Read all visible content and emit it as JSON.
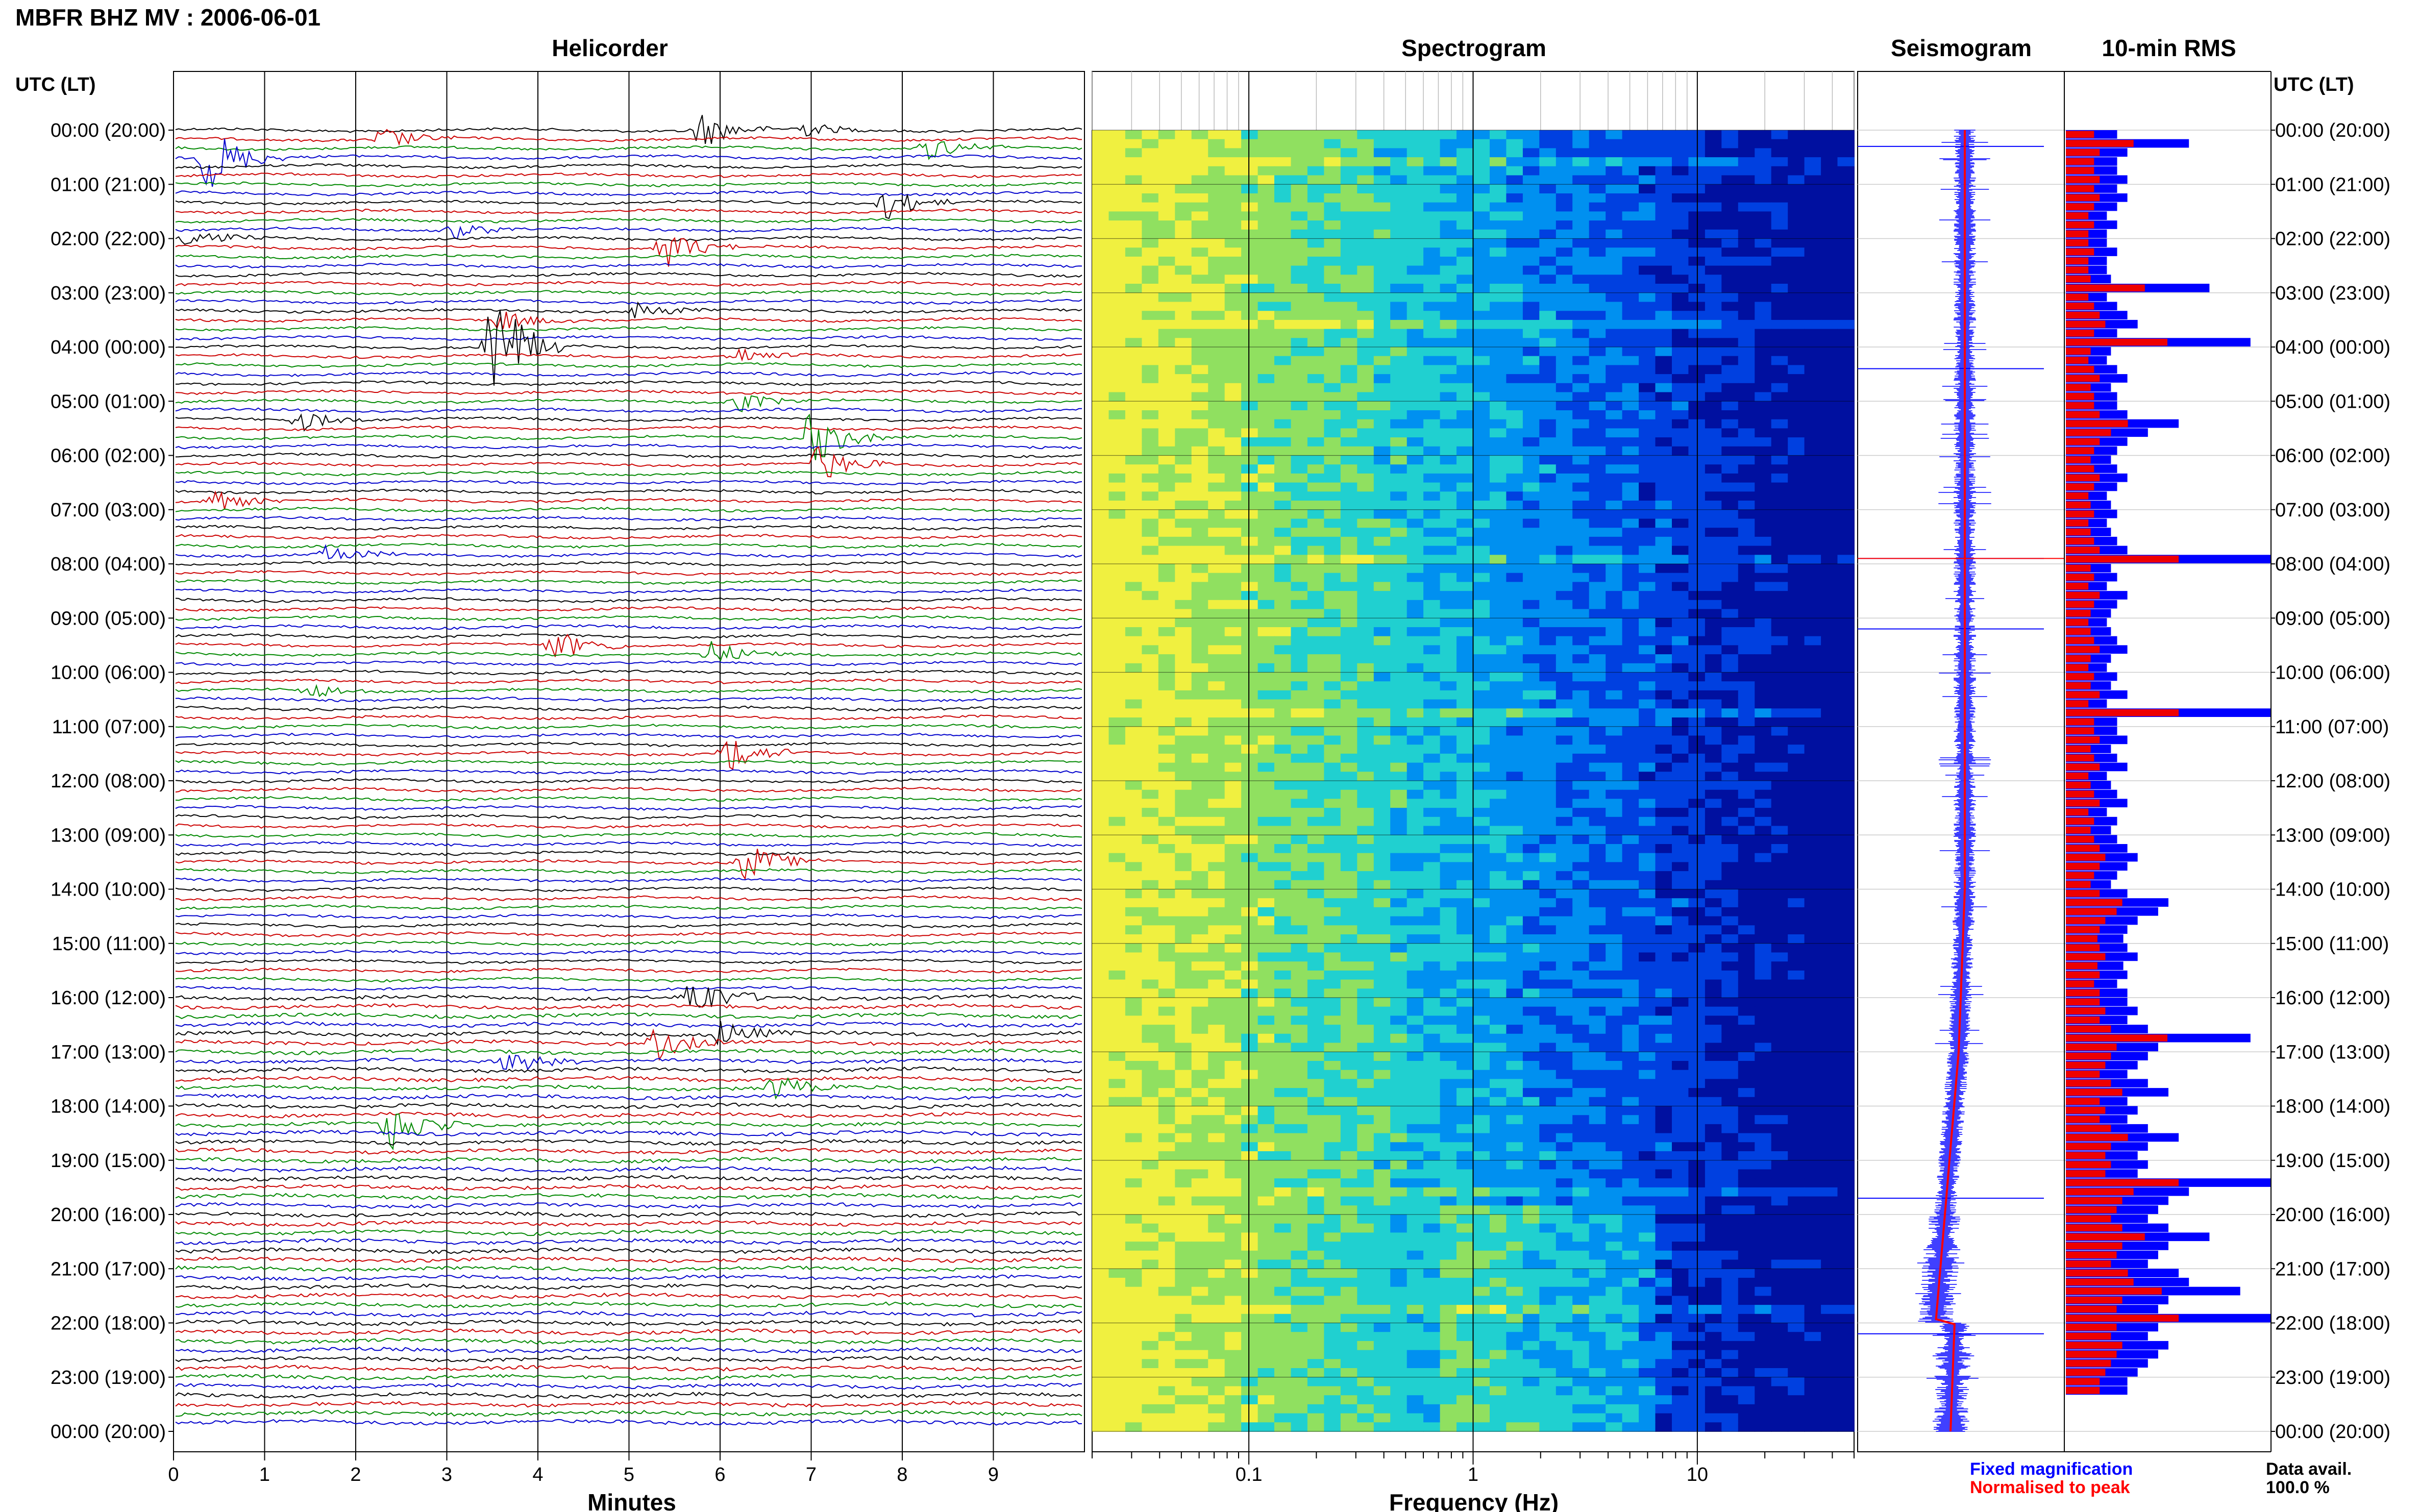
{
  "page_title": "MBFR BHZ MV : 2006-06-01",
  "panels": {
    "helicorder": "Helicorder",
    "spectrogram": "Spectrogram",
    "seismogram": "Seismogram",
    "rms": "10-min RMS"
  },
  "axis_header_left": "UTC (LT)",
  "axis_header_right": "UTC (LT)",
  "time_labels": [
    "00:00 (20:00)",
    "01:00 (21:00)",
    "02:00 (22:00)",
    "03:00 (23:00)",
    "04:00 (00:00)",
    "05:00 (01:00)",
    "06:00 (02:00)",
    "07:00 (03:00)",
    "08:00 (04:00)",
    "09:00 (05:00)",
    "10:00 (06:00)",
    "11:00 (07:00)",
    "12:00 (08:00)",
    "13:00 (09:00)",
    "14:00 (10:00)",
    "15:00 (11:00)",
    "16:00 (12:00)",
    "17:00 (13:00)",
    "18:00 (14:00)",
    "19:00 (15:00)",
    "20:00 (16:00)",
    "21:00 (17:00)",
    "22:00 (18:00)",
    "23:00 (19:00)",
    "00:00 (20:00)"
  ],
  "legend": {
    "fixed": "Fixed magnification",
    "normalised": "Normalised to peak",
    "data_avail_label": "Data avail.",
    "data_avail_value": "100.0 %"
  },
  "colors": {
    "trace_cycle": [
      "#000000",
      "#cc0000",
      "#008800",
      "#0000cc"
    ],
    "fixed": "#0000ff",
    "normalised": "#ff0000"
  },
  "chart_data": [
    {
      "type": "line",
      "name": "Helicorder",
      "title": "Helicorder",
      "xlabel": "Minutes",
      "ylabel": "UTC (LT)",
      "xlim": [
        0,
        10
      ],
      "x_ticks": [
        0,
        1,
        2,
        3,
        4,
        5,
        6,
        7,
        8,
        9
      ],
      "traces_per_hour": 6,
      "minutes_per_trace": 10,
      "events": [
        {
          "row": 0,
          "minute": 5.8,
          "amp": 0.9
        },
        {
          "row": 0,
          "minute": 6.9,
          "amp": 0.4
        },
        {
          "row": 1,
          "minute": 2.3,
          "amp": 0.6
        },
        {
          "row": 2,
          "minute": 8.3,
          "amp": 0.6
        },
        {
          "row": 3,
          "minute": 0.4,
          "amp": 1.8
        },
        {
          "row": 8,
          "minute": 7.8,
          "amp": 0.9
        },
        {
          "row": 11,
          "minute": 3.1,
          "amp": 0.4
        },
        {
          "row": 12,
          "minute": 0.2,
          "amp": 0.5
        },
        {
          "row": 13,
          "minute": 5.4,
          "amp": 1.0
        },
        {
          "row": 20,
          "minute": 5.1,
          "amp": 0.4
        },
        {
          "row": 21,
          "minute": 3.6,
          "amp": 0.5
        },
        {
          "row": 24,
          "minute": 3.5,
          "amp": 3.5
        },
        {
          "row": 25,
          "minute": 6.2,
          "amp": 0.4
        },
        {
          "row": 30,
          "minute": 6.2,
          "amp": 0.5
        },
        {
          "row": 32,
          "minute": 1.4,
          "amp": 0.5
        },
        {
          "row": 34,
          "minute": 7.0,
          "amp": 1.5
        },
        {
          "row": 37,
          "minute": 7.1,
          "amp": 1.0
        },
        {
          "row": 41,
          "minute": 0.4,
          "amp": 0.6
        },
        {
          "row": 47,
          "minute": 1.7,
          "amp": 0.5
        },
        {
          "row": 57,
          "minute": 4.2,
          "amp": 0.8
        },
        {
          "row": 58,
          "minute": 5.9,
          "amp": 0.6
        },
        {
          "row": 62,
          "minute": 1.5,
          "amp": 0.4
        },
        {
          "row": 69,
          "minute": 6.1,
          "amp": 1.0
        },
        {
          "row": 81,
          "minute": 6.3,
          "amp": 1.0
        },
        {
          "row": 96,
          "minute": 5.7,
          "amp": 1.2
        },
        {
          "row": 100,
          "minute": 6.0,
          "amp": 0.7
        },
        {
          "row": 103,
          "minute": 3.7,
          "amp": 0.6
        },
        {
          "row": 106,
          "minute": 6.6,
          "amp": 0.6
        },
        {
          "row": 110,
          "minute": 2.4,
          "amp": 1.5
        },
        {
          "row": 101,
          "minute": 5.3,
          "amp": 0.8
        }
      ]
    },
    {
      "type": "heatmap",
      "name": "Spectrogram",
      "title": "Spectrogram",
      "xlabel": "Frequency (Hz)",
      "x_scale": "log",
      "xlim": [
        0.02,
        50
      ],
      "x_tick_labels": [
        "0.1",
        "1",
        "10"
      ],
      "x_tick_values": [
        0.1,
        1,
        10
      ],
      "colormap": [
        "#0010a0",
        "#0040e0",
        "#0090f0",
        "#20d0d0",
        "#90e060",
        "#f0f040"
      ]
    },
    {
      "type": "line",
      "name": "Seismogram",
      "title": "Seismogram",
      "series": [
        {
          "name": "Fixed magnification"
        },
        {
          "name": "Normalised to peak"
        }
      ],
      "spikes_hours": [
        0.3,
        4.4,
        7.9,
        9.2,
        19.7,
        22.2
      ]
    },
    {
      "type": "bar",
      "name": "10-min RMS",
      "title": "10-min RMS",
      "orientation": "horizontal",
      "bars_per_hour": 6,
      "series": [
        {
          "name": "Fixed magnification"
        },
        {
          "name": "Normalised to peak"
        }
      ],
      "values": [
        0.25,
        0.6,
        0.3,
        0.25,
        0.25,
        0.3,
        0.25,
        0.3,
        0.25,
        0.2,
        0.25,
        0.2,
        0.2,
        0.25,
        0.2,
        0.2,
        0.22,
        0.7,
        0.2,
        0.25,
        0.3,
        0.35,
        0.25,
        0.9,
        0.22,
        0.2,
        0.25,
        0.3,
        0.22,
        0.25,
        0.25,
        0.3,
        0.55,
        0.4,
        0.3,
        0.25,
        0.22,
        0.25,
        0.3,
        0.25,
        0.2,
        0.22,
        0.25,
        0.2,
        0.22,
        0.25,
        0.3,
        1.0,
        0.22,
        0.25,
        0.2,
        0.3,
        0.25,
        0.22,
        0.2,
        0.22,
        0.25,
        0.3,
        0.22,
        0.2,
        0.25,
        0.22,
        0.3,
        0.2,
        1.0,
        0.25,
        0.25,
        0.3,
        0.22,
        0.25,
        0.3,
        0.2,
        0.22,
        0.25,
        0.3,
        0.2,
        0.25,
        0.22,
        0.25,
        0.3,
        0.35,
        0.3,
        0.25,
        0.22,
        0.3,
        0.5,
        0.45,
        0.35,
        0.3,
        0.28,
        0.3,
        0.35,
        0.28,
        0.3,
        0.25,
        0.3,
        0.3,
        0.35,
        0.3,
        0.4,
        0.9,
        0.45,
        0.4,
        0.35,
        0.3,
        0.4,
        0.5,
        0.3,
        0.35,
        0.3,
        0.4,
        0.55,
        0.4,
        0.35,
        0.4,
        0.35,
        1.0,
        0.6,
        0.5,
        0.45,
        0.4,
        0.5,
        0.7,
        0.5,
        0.45,
        0.4,
        0.55,
        0.6,
        0.85,
        0.5,
        0.45,
        1.0,
        0.45,
        0.4,
        0.5,
        0.45,
        0.4,
        0.35,
        0.3,
        0.3
      ]
    }
  ]
}
